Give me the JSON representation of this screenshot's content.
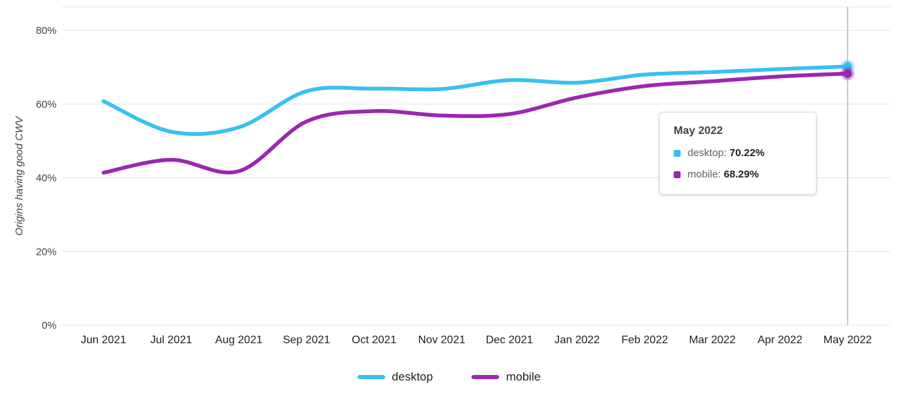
{
  "chart_data": {
    "type": "line",
    "title": "",
    "ylabel": "Origins having good CWV",
    "x": [
      "Jun 2021",
      "Jul 2021",
      "Aug 2021",
      "Sep 2021",
      "Oct 2021",
      "Nov 2021",
      "Dec 2021",
      "Jan 2022",
      "Feb 2022",
      "Mar 2022",
      "Apr 2022",
      "May 2022"
    ],
    "series": [
      {
        "name": "desktop",
        "color": "#38c1ef",
        "values": [
          60.8,
          52.5,
          53.7,
          63.5,
          64.2,
          64.1,
          66.5,
          65.8,
          68.0,
          68.7,
          69.5,
          70.22
        ]
      },
      {
        "name": "mobile",
        "color": "#9c27b0",
        "values": [
          41.4,
          44.9,
          41.8,
          55.3,
          58.1,
          56.9,
          57.3,
          61.8,
          64.9,
          66.2,
          67.5,
          68.29
        ]
      }
    ],
    "ylim": [
      0,
      80
    ],
    "yticks": [
      {
        "value": 0,
        "label": "0%"
      },
      {
        "value": 20,
        "label": "20%"
      },
      {
        "value": 40,
        "label": "40%"
      },
      {
        "value": 60,
        "label": "60%"
      },
      {
        "value": 80,
        "label": "80%"
      }
    ],
    "grid": true,
    "legend_position": "bottom",
    "hovered_x": "May 2022"
  },
  "tooltip": {
    "title": "May 2022",
    "rows": [
      {
        "label": "desktop:",
        "value": "70.22%"
      },
      {
        "label": "mobile:",
        "value": "68.29%"
      }
    ]
  }
}
